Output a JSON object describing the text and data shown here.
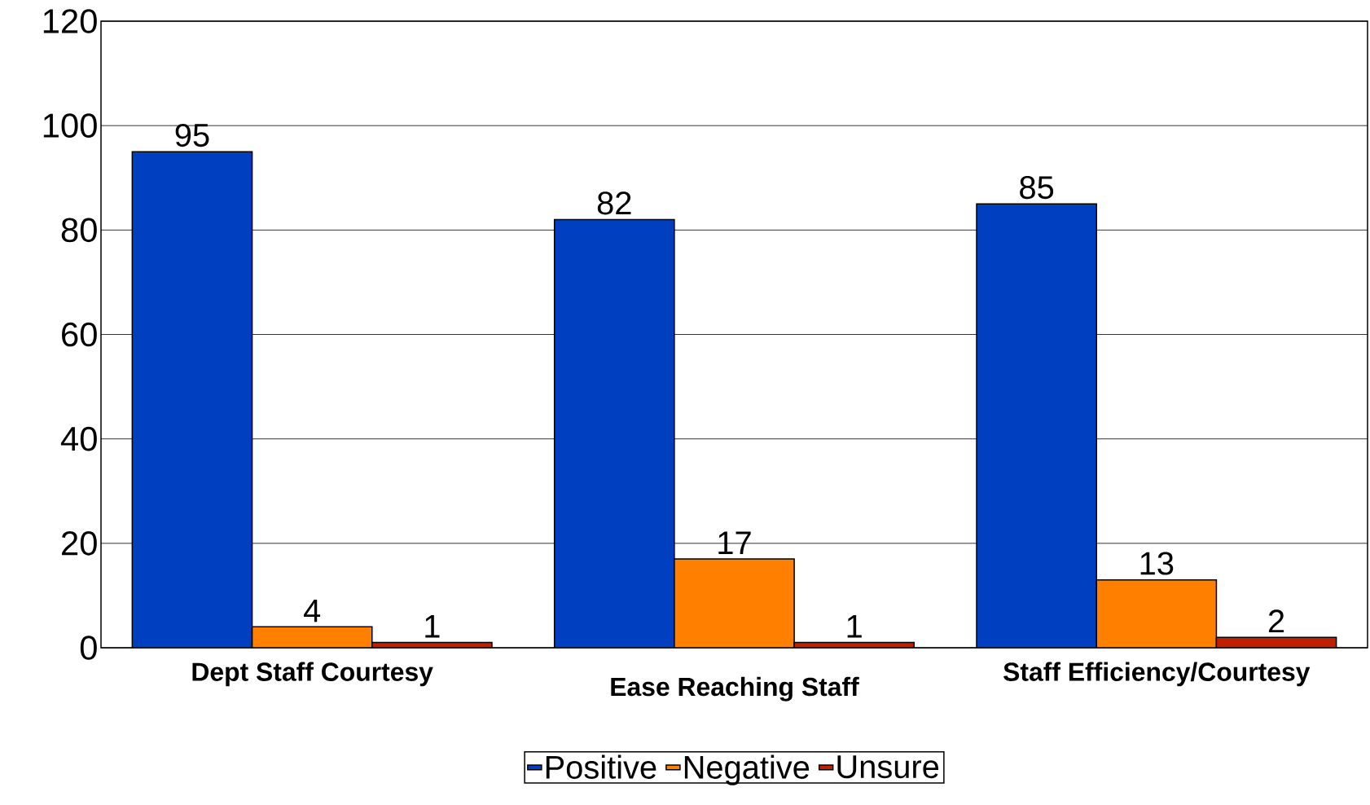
{
  "chart_data": {
    "type": "bar",
    "categories": [
      "Dept Staff Courtesy",
      "Ease Reaching Staff",
      "Staff Efficiency/Courtesy"
    ],
    "series": [
      {
        "name": "Positive",
        "color": "#0040c0",
        "values": [
          95,
          82,
          85
        ]
      },
      {
        "name": "Negative",
        "color": "#ff8000",
        "values": [
          4,
          17,
          13
        ]
      },
      {
        "name": "Unsure",
        "color": "#c02000",
        "values": [
          1,
          1,
          2
        ]
      }
    ],
    "ylim": [
      0,
      120
    ],
    "yticks": [
      0,
      20,
      40,
      60,
      80,
      100,
      120
    ],
    "grid": "y",
    "legend": "bottom",
    "data_labels": true
  }
}
